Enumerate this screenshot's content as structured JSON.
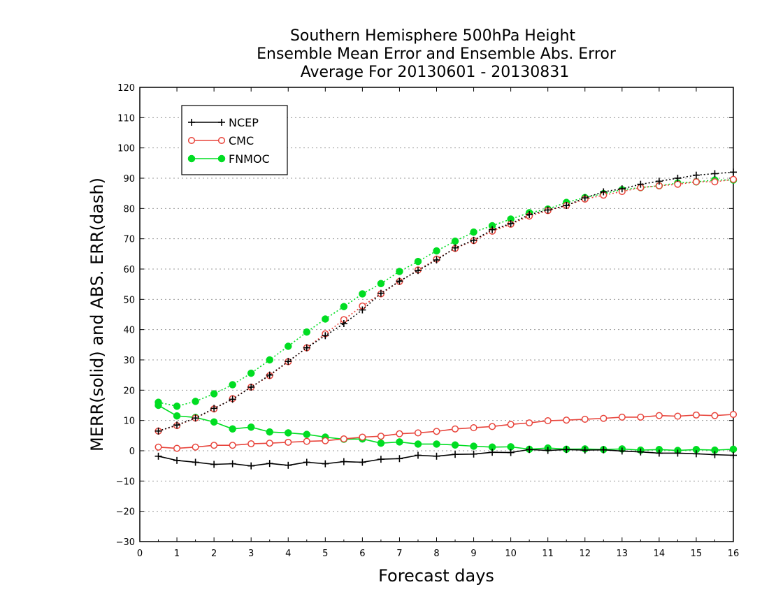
{
  "chart_data": {
    "type": "line",
    "title": [
      "Southern Hemisphere 500hPa Height",
      "Ensemble Mean Error and Ensemble Abs. Error",
      "Average For 20130601 - 20130831"
    ],
    "xlabel": "Forecast days",
    "ylabel": "MERR(solid) and ABS. ERR(dash)",
    "xlim": [
      0,
      16
    ],
    "ylim": [
      -30,
      120
    ],
    "xticks": [
      0,
      1,
      2,
      3,
      4,
      5,
      6,
      7,
      8,
      9,
      10,
      11,
      12,
      13,
      14,
      15,
      16
    ],
    "yticks": [
      -30,
      -20,
      -10,
      0,
      10,
      20,
      30,
      40,
      50,
      60,
      70,
      80,
      90,
      100,
      110,
      120
    ],
    "grid": "horizontal dotted",
    "legend_position": "top-left",
    "x": [
      0.5,
      1,
      1.5,
      2,
      2.5,
      3,
      3.5,
      4,
      4.5,
      5,
      5.5,
      6,
      6.5,
      7,
      7.5,
      8,
      8.5,
      9,
      9.5,
      10,
      10.5,
      11,
      11.5,
      12,
      12.5,
      13,
      13.5,
      14,
      14.5,
      15,
      15.5,
      16
    ],
    "series": [
      {
        "name": "NCEP",
        "color": "#000000",
        "marker": "plus",
        "merr": [
          -1.8,
          -3.2,
          -3.8,
          -4.5,
          -4.3,
          -5.0,
          -4.2,
          -4.8,
          -3.8,
          -4.3,
          -3.6,
          -3.8,
          -2.8,
          -2.6,
          -1.5,
          -1.8,
          -1.2,
          -1.1,
          -0.5,
          -0.6,
          0.4,
          0.1,
          0.4,
          0.2,
          0.3,
          -0.1,
          -0.4,
          -0.8,
          -0.8,
          -1.0,
          -1.3,
          -1.5
        ],
        "abs_err": [
          6.5,
          8.5,
          10.8,
          14.0,
          17.0,
          21.0,
          25.0,
          29.5,
          34.0,
          38.0,
          42.0,
          46.5,
          52.0,
          56.0,
          59.5,
          63.0,
          67.0,
          69.5,
          73.0,
          75.0,
          78.0,
          79.5,
          81.0,
          83.5,
          85.5,
          86.5,
          88.0,
          89.0,
          90.0,
          91.0,
          91.5,
          92.0
        ]
      },
      {
        "name": "CMC",
        "color": "#e8453c",
        "marker": "open-circle",
        "merr": [
          1.2,
          0.8,
          1.2,
          1.8,
          1.8,
          2.3,
          2.5,
          2.8,
          3.1,
          3.3,
          3.9,
          4.5,
          4.8,
          5.6,
          5.9,
          6.4,
          7.2,
          7.6,
          8.0,
          8.7,
          9.2,
          9.9,
          10.1,
          10.4,
          10.7,
          11.1,
          11.1,
          11.6,
          11.4,
          11.8,
          11.6,
          12.0
        ],
        "abs_err": [
          6.5,
          8.3,
          10.8,
          13.8,
          17.2,
          21.0,
          24.8,
          29.4,
          34.0,
          38.6,
          43.3,
          47.8,
          51.8,
          55.9,
          59.7,
          63.3,
          66.8,
          69.4,
          72.5,
          74.8,
          77.5,
          79.3,
          81.0,
          83.1,
          84.4,
          85.6,
          86.9,
          87.5,
          88.0,
          88.8,
          88.8,
          89.6
        ]
      },
      {
        "name": "FNMOC",
        "color": "#00dd22",
        "marker": "filled-circle",
        "merr": [
          15.0,
          11.5,
          11.0,
          9.5,
          7.2,
          7.8,
          6.2,
          5.9,
          5.4,
          4.5,
          3.8,
          3.9,
          2.5,
          2.9,
          2.2,
          2.2,
          1.9,
          1.5,
          1.2,
          1.3,
          0.5,
          0.9,
          0.5,
          0.6,
          0.4,
          0.6,
          0.2,
          0.4,
          0.1,
          0.4,
          0.2,
          0.5
        ],
        "abs_err": [
          16.0,
          14.7,
          16.3,
          18.8,
          21.8,
          25.6,
          30.0,
          34.5,
          39.2,
          43.5,
          47.6,
          51.8,
          55.2,
          59.2,
          62.5,
          66.0,
          69.2,
          72.2,
          74.3,
          76.5,
          78.6,
          79.8,
          82.0,
          83.6,
          84.9,
          86.2,
          86.9,
          87.5,
          88.4,
          88.8,
          89.4,
          89.4
        ]
      }
    ]
  }
}
